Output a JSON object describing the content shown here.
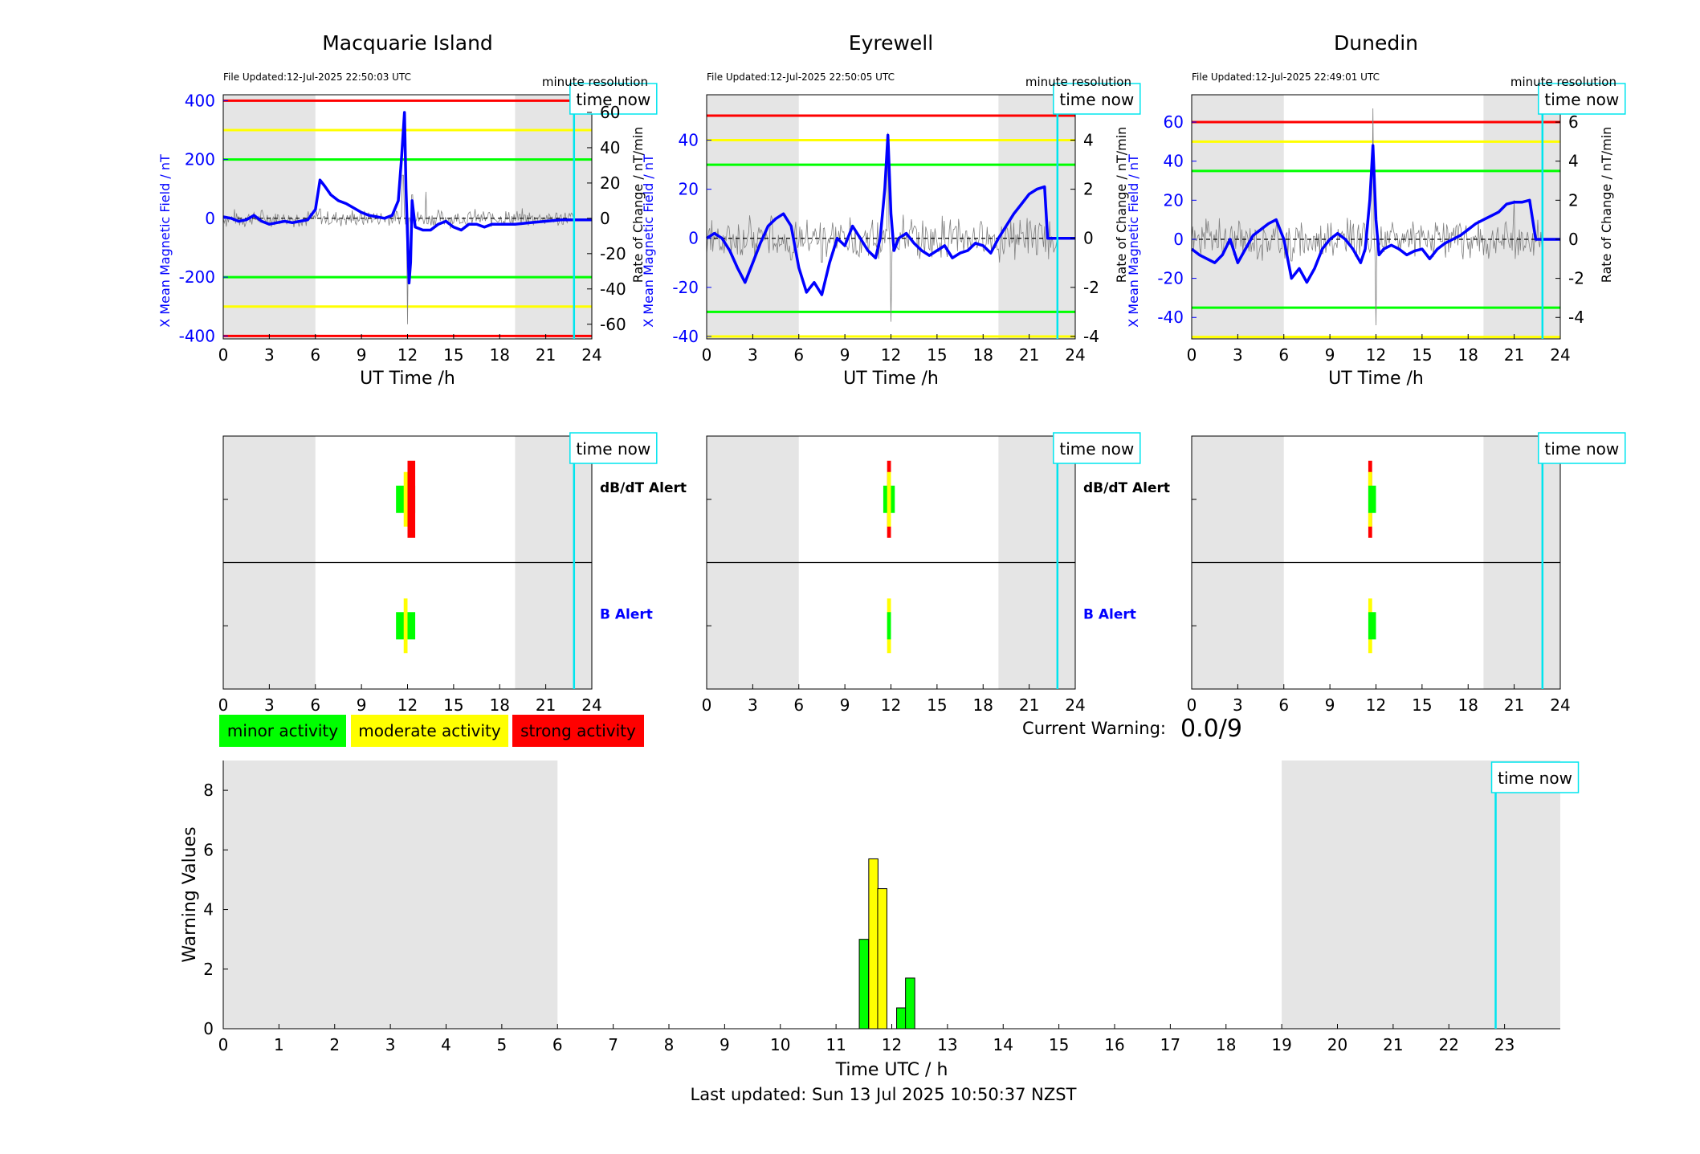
{
  "footer": {
    "last_updated": "Last updated: Sun 13 Jul 2025 10:50:37 NZST",
    "current_warning_label": "Current Warning:",
    "current_warning_value": "0.0/9"
  },
  "legend": [
    "minor activity",
    "moderate activity",
    "strong activity"
  ],
  "colors": {
    "minor": "#00ff00",
    "moderate": "#ffff00",
    "strong": "#ff0000",
    "x_field": "#0000ff",
    "rate": "#808080",
    "time_now": "#00e5ee",
    "night_shade": "#e5e5e5"
  },
  "chart_data": [
    {
      "type": "line",
      "title": "Macquarie Island",
      "file_updated": "File Updated:12-Jul-2025 22:50:03 UTC",
      "resolution": "minute resolution",
      "time_now_label": "time now",
      "time_now_h": 22.84,
      "xlabel": "UT Time /h",
      "ylabel_left": "X Mean Magnetic Field / nT",
      "ylabel_right": "Rate of Change / nT/min",
      "xlim": [
        0,
        24
      ],
      "xticks": [
        0,
        3,
        6,
        9,
        12,
        15,
        18,
        21,
        24
      ],
      "ylim_left": [
        -410,
        420
      ],
      "yticks_left": [
        -400,
        -200,
        0,
        200,
        400
      ],
      "ylim_right": [
        -68.3,
        70
      ],
      "yticks_right": [
        -60,
        -40,
        -20,
        0,
        20,
        40,
        60
      ],
      "night_bands": [
        [
          0,
          6
        ],
        [
          19,
          24
        ]
      ],
      "thresholds": [
        {
          "value": 400,
          "level": "strong"
        },
        {
          "value": 300,
          "level": "moderate"
        },
        {
          "value": 200,
          "level": "minor"
        },
        {
          "value": -200,
          "level": "minor"
        },
        {
          "value": -300,
          "level": "moderate"
        },
        {
          "value": -400,
          "level": "strong"
        }
      ],
      "series_x": [
        [
          0,
          5
        ],
        [
          0.5,
          0
        ],
        [
          1,
          -10
        ],
        [
          1.5,
          -5
        ],
        [
          2,
          10
        ],
        [
          2.5,
          -10
        ],
        [
          3,
          -20
        ],
        [
          3.5,
          -15
        ],
        [
          4,
          -10
        ],
        [
          4.5,
          -15
        ],
        [
          5,
          -10
        ],
        [
          5.5,
          -5
        ],
        [
          6,
          30
        ],
        [
          6.3,
          130
        ],
        [
          6.6,
          110
        ],
        [
          7,
          80
        ],
        [
          7.5,
          60
        ],
        [
          8,
          50
        ],
        [
          8.5,
          35
        ],
        [
          9,
          20
        ],
        [
          9.5,
          10
        ],
        [
          10,
          5
        ],
        [
          10.5,
          0
        ],
        [
          11,
          10
        ],
        [
          11.4,
          60
        ],
        [
          11.6,
          200
        ],
        [
          11.8,
          360
        ],
        [
          11.9,
          100
        ],
        [
          12,
          -60
        ],
        [
          12.1,
          -220
        ],
        [
          12.2,
          -150
        ],
        [
          12.3,
          60
        ],
        [
          12.5,
          -30
        ],
        [
          13,
          -40
        ],
        [
          13.5,
          -40
        ],
        [
          14,
          -20
        ],
        [
          14.5,
          -10
        ],
        [
          15,
          -30
        ],
        [
          15.5,
          -40
        ],
        [
          16,
          -20
        ],
        [
          16.5,
          -20
        ],
        [
          17,
          -30
        ],
        [
          17.5,
          -20
        ],
        [
          18,
          -20
        ],
        [
          19,
          -20
        ],
        [
          20,
          -15
        ],
        [
          21,
          -10
        ],
        [
          22,
          -5
        ],
        [
          22.84,
          -5
        ],
        [
          24,
          -5
        ]
      ],
      "rate_noise": {
        "base": 6,
        "spikes": [
          [
            6.3,
            12
          ],
          [
            11.7,
            55
          ],
          [
            12.0,
            -60
          ],
          [
            12.3,
            30
          ],
          [
            13.2,
            15
          ]
        ]
      }
    },
    {
      "type": "line",
      "title": "Eyrewell",
      "file_updated": "File Updated:12-Jul-2025 22:50:05 UTC",
      "resolution": "minute resolution",
      "time_now_label": "time now",
      "time_now_h": 22.84,
      "xlabel": "UT Time /h",
      "ylabel_left": "X Mean Magnetic Field / nT",
      "ylabel_right": "Rate of Change / nT/min",
      "xlim": [
        0,
        24
      ],
      "xticks": [
        0,
        3,
        6,
        9,
        12,
        15,
        18,
        21,
        24
      ],
      "ylim_left": [
        -41,
        58.5
      ],
      "yticks_left": [
        -40,
        -20,
        0,
        20,
        40
      ],
      "ylim_right": [
        -4.1,
        5.85
      ],
      "yticks_right": [
        -4,
        -2,
        0,
        2,
        4
      ],
      "night_bands": [
        [
          0,
          6
        ],
        [
          19,
          24
        ]
      ],
      "thresholds": [
        {
          "value": 50,
          "level": "strong"
        },
        {
          "value": 40,
          "level": "moderate"
        },
        {
          "value": 30,
          "level": "minor"
        },
        {
          "value": -30,
          "level": "minor"
        },
        {
          "value": -40,
          "level": "moderate"
        }
      ],
      "series_x": [
        [
          0,
          0
        ],
        [
          0.5,
          2
        ],
        [
          1,
          0
        ],
        [
          1.5,
          -5
        ],
        [
          2,
          -12
        ],
        [
          2.5,
          -18
        ],
        [
          3,
          -10
        ],
        [
          3.5,
          -2
        ],
        [
          4,
          5
        ],
        [
          4.5,
          8
        ],
        [
          5,
          10
        ],
        [
          5.5,
          5
        ],
        [
          6,
          -12
        ],
        [
          6.5,
          -22
        ],
        [
          7,
          -18
        ],
        [
          7.5,
          -23
        ],
        [
          8,
          -10
        ],
        [
          8.5,
          0
        ],
        [
          9,
          -3
        ],
        [
          9.5,
          5
        ],
        [
          10,
          0
        ],
        [
          10.5,
          -5
        ],
        [
          11,
          -8
        ],
        [
          11.3,
          0
        ],
        [
          11.6,
          20
        ],
        [
          11.8,
          42
        ],
        [
          12,
          10
        ],
        [
          12.2,
          -5
        ],
        [
          12.5,
          0
        ],
        [
          13,
          2
        ],
        [
          13.5,
          -2
        ],
        [
          14,
          -5
        ],
        [
          14.5,
          -7
        ],
        [
          15,
          -5
        ],
        [
          15.5,
          -3
        ],
        [
          16,
          -8
        ],
        [
          16.5,
          -6
        ],
        [
          17,
          -5
        ],
        [
          17.5,
          -2
        ],
        [
          18,
          -3
        ],
        [
          18.5,
          -6
        ],
        [
          19,
          0
        ],
        [
          19.5,
          5
        ],
        [
          20,
          10
        ],
        [
          20.5,
          14
        ],
        [
          21,
          18
        ],
        [
          21.5,
          20
        ],
        [
          22,
          21
        ],
        [
          22.2,
          0
        ],
        [
          24,
          0
        ]
      ],
      "rate_noise": {
        "base": 1.0,
        "spikes": [
          [
            5.5,
            -2
          ],
          [
            7.5,
            -2.2
          ],
          [
            11.8,
            4.3
          ],
          [
            12.0,
            -3.4
          ],
          [
            21.5,
            -1.5
          ]
        ]
      }
    },
    {
      "type": "line",
      "title": "Dunedin",
      "file_updated": "File Updated:12-Jul-2025 22:49:01 UTC",
      "resolution": "minute resolution",
      "time_now_label": "time now",
      "time_now_h": 22.84,
      "xlabel": "UT Time /h",
      "ylabel_left": "X Mean Magnetic Field / nT",
      "ylabel_right": "Rate of Change / nT/min",
      "xlim": [
        0,
        24
      ],
      "xticks": [
        0,
        3,
        6,
        9,
        12,
        15,
        18,
        21,
        24
      ],
      "ylim_left": [
        -51,
        74
      ],
      "yticks_left": [
        -40,
        -20,
        0,
        20,
        40,
        60
      ],
      "ylim_right": [
        -5.1,
        7.4
      ],
      "yticks_right": [
        -4,
        -2,
        0,
        2,
        4,
        6
      ],
      "night_bands": [
        [
          0,
          6
        ],
        [
          19,
          24
        ]
      ],
      "thresholds": [
        {
          "value": 60,
          "level": "strong"
        },
        {
          "value": 50,
          "level": "moderate"
        },
        {
          "value": 35,
          "level": "minor"
        },
        {
          "value": -35,
          "level": "minor"
        },
        {
          "value": -50,
          "level": "moderate"
        }
      ],
      "series_x": [
        [
          0,
          -5
        ],
        [
          0.5,
          -8
        ],
        [
          1,
          -10
        ],
        [
          1.5,
          -12
        ],
        [
          2,
          -8
        ],
        [
          2.5,
          0
        ],
        [
          3,
          -12
        ],
        [
          3.5,
          -5
        ],
        [
          4,
          2
        ],
        [
          4.5,
          5
        ],
        [
          5,
          8
        ],
        [
          5.5,
          10
        ],
        [
          6,
          0
        ],
        [
          6.5,
          -20
        ],
        [
          7,
          -15
        ],
        [
          7.5,
          -22
        ],
        [
          8,
          -15
        ],
        [
          8.5,
          -5
        ],
        [
          9,
          0
        ],
        [
          9.5,
          3
        ],
        [
          10,
          0
        ],
        [
          10.5,
          -5
        ],
        [
          11,
          -12
        ],
        [
          11.3,
          -5
        ],
        [
          11.6,
          20
        ],
        [
          11.8,
          48
        ],
        [
          12,
          10
        ],
        [
          12.2,
          -8
        ],
        [
          12.5,
          -5
        ],
        [
          13,
          -3
        ],
        [
          13.5,
          -5
        ],
        [
          14,
          -8
        ],
        [
          14.5,
          -6
        ],
        [
          15,
          -5
        ],
        [
          15.5,
          -10
        ],
        [
          16,
          -5
        ],
        [
          16.5,
          -2
        ],
        [
          17,
          0
        ],
        [
          17.5,
          2
        ],
        [
          18,
          5
        ],
        [
          18.5,
          8
        ],
        [
          19,
          10
        ],
        [
          19.5,
          12
        ],
        [
          20,
          14
        ],
        [
          20.5,
          18
        ],
        [
          21,
          19
        ],
        [
          21.5,
          19
        ],
        [
          22,
          20
        ],
        [
          22.4,
          0
        ],
        [
          24,
          0
        ]
      ],
      "rate_noise": {
        "base": 1.2,
        "spikes": [
          [
            6.5,
            -2.5
          ],
          [
            11.8,
            6.7
          ],
          [
            12.0,
            -4.4
          ],
          [
            21.0,
            2.0
          ]
        ]
      }
    },
    {
      "type": "bar",
      "panel": "alerts",
      "station": "Macquarie Island",
      "time_now_label": "time now",
      "time_now_h": 22.84,
      "xlim": [
        0,
        24
      ],
      "xticks": [
        0,
        3,
        6,
        9,
        12,
        15,
        18,
        21,
        24
      ],
      "night_bands": [
        [
          0,
          6
        ],
        [
          19,
          24
        ]
      ],
      "rows": [
        {
          "label": "dB/dT Alert",
          "label_color": "#000000",
          "intervals": [
            {
              "start": 11.25,
              "end": 12.0,
              "level": "minor"
            },
            {
              "start": 11.75,
              "end": 12.0,
              "level": "moderate"
            },
            {
              "start": 12.0,
              "end": 12.5,
              "level": "minor"
            },
            {
              "start": 12.0,
              "end": 12.5,
              "level": "strong"
            }
          ]
        },
        {
          "label": "B Alert",
          "label_color": "#0000ff",
          "intervals": [
            {
              "start": 11.25,
              "end": 12.5,
              "level": "minor"
            },
            {
              "start": 11.75,
              "end": 12.0,
              "level": "moderate"
            }
          ]
        }
      ]
    },
    {
      "type": "bar",
      "panel": "alerts",
      "station": "Eyrewell",
      "time_now_label": "time now",
      "time_now_h": 22.84,
      "xlim": [
        0,
        24
      ],
      "xticks": [
        0,
        3,
        6,
        9,
        12,
        15,
        18,
        21,
        24
      ],
      "night_bands": [
        [
          0,
          6
        ],
        [
          19,
          24
        ]
      ],
      "rows": [
        {
          "label": "dB/dT Alert",
          "label_color": "#000000",
          "intervals": [
            {
              "start": 11.75,
              "end": 12.0,
              "level": "strong"
            },
            {
              "start": 11.5,
              "end": 12.25,
              "level": "minor"
            },
            {
              "start": 11.75,
              "end": 12.0,
              "level": "moderate"
            }
          ]
        },
        {
          "label": "B Alert",
          "label_color": "#0000ff",
          "intervals": [
            {
              "start": 11.75,
              "end": 12.0,
              "level": "moderate"
            },
            {
              "start": 11.75,
              "end": 12.0,
              "level": "minor"
            }
          ]
        }
      ]
    },
    {
      "type": "bar",
      "panel": "alerts",
      "station": "Dunedin",
      "time_now_label": "time now",
      "time_now_h": 22.84,
      "xlim": [
        0,
        24
      ],
      "xticks": [
        0,
        3,
        6,
        9,
        12,
        15,
        18,
        21,
        24
      ],
      "night_bands": [
        [
          0,
          6
        ],
        [
          19,
          24
        ]
      ],
      "rows": [
        {
          "label": "",
          "label_color": "#000000",
          "intervals": [
            {
              "start": 11.5,
              "end": 11.75,
              "level": "strong"
            },
            {
              "start": 11.5,
              "end": 11.75,
              "level": "moderate"
            },
            {
              "start": 11.5,
              "end": 12.0,
              "level": "minor"
            }
          ]
        },
        {
          "label": "",
          "label_color": "#0000ff",
          "intervals": [
            {
              "start": 11.5,
              "end": 11.75,
              "level": "moderate"
            },
            {
              "start": 11.5,
              "end": 12.0,
              "level": "minor"
            }
          ]
        }
      ]
    },
    {
      "type": "bar",
      "panel": "warning",
      "xlabel": "Time UTC / h",
      "ylabel": "Warning Values",
      "time_now_label": "time now",
      "time_now_h": 22.84,
      "xlim": [
        0,
        24
      ],
      "xticks": [
        0,
        1,
        2,
        3,
        4,
        5,
        6,
        7,
        8,
        9,
        10,
        11,
        12,
        13,
        14,
        15,
        16,
        17,
        18,
        19,
        20,
        21,
        22,
        23
      ],
      "ylim": [
        0,
        9
      ],
      "yticks": [
        0,
        2,
        4,
        6,
        8
      ],
      "night_bands": [
        [
          0,
          6
        ],
        [
          19,
          24
        ]
      ],
      "bars": [
        {
          "x": 11.5,
          "value": 3.0,
          "level": "minor"
        },
        {
          "x": 11.67,
          "value": 5.7,
          "level": "moderate"
        },
        {
          "x": 11.83,
          "value": 4.7,
          "level": "moderate"
        },
        {
          "x": 12.17,
          "value": 0.7,
          "level": "minor"
        },
        {
          "x": 12.33,
          "value": 1.7,
          "level": "minor"
        }
      ]
    }
  ]
}
